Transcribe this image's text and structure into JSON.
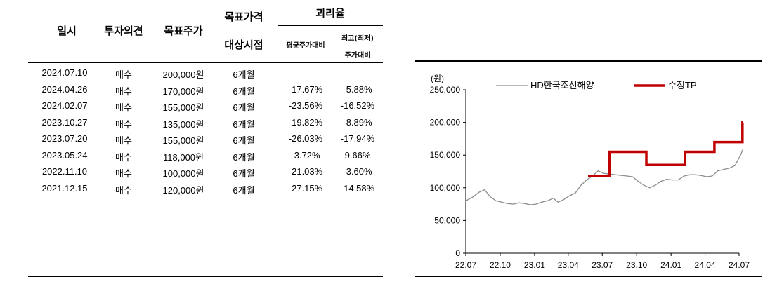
{
  "table": {
    "headers": {
      "date": "일시",
      "opinion": "투자의견",
      "target": "목표주가",
      "target_period_1": "목표가격",
      "target_period_2": "대상시점",
      "disparity": "괴리율",
      "avg": "평균주가대비",
      "maxmin_1": "최고(최저)",
      "maxmin_2": "주가대비"
    },
    "rows": [
      {
        "date": "2024.07.10",
        "opinion": "매수",
        "target": "200,000원",
        "period": "6개월",
        "avg": "",
        "maxmin": ""
      },
      {
        "date": "2024.04.26",
        "opinion": "매수",
        "target": "170,000원",
        "period": "6개월",
        "avg": "-17.67%",
        "maxmin": "-5.88%"
      },
      {
        "date": "2024.02.07",
        "opinion": "매수",
        "target": "155,000원",
        "period": "6개월",
        "avg": "-23.56%",
        "maxmin": "-16.52%"
      },
      {
        "date": "2023.10.27",
        "opinion": "매수",
        "target": "135,000원",
        "period": "6개월",
        "avg": "-19.82%",
        "maxmin": "-8.89%"
      },
      {
        "date": "2023.07.20",
        "opinion": "매수",
        "target": "155,000원",
        "period": "6개월",
        "avg": "-26.03%",
        "maxmin": "-17.94%"
      },
      {
        "date": "2023.05.24",
        "opinion": "매수",
        "target": "118,000원",
        "period": "6개월",
        "avg": "-3.72%",
        "maxmin": "9.66%"
      },
      {
        "date": "2022.11.10",
        "opinion": "매수",
        "target": "100,000원",
        "period": "6개월",
        "avg": "-21.03%",
        "maxmin": "-3.60%"
      },
      {
        "date": "2021.12.15",
        "opinion": "매수",
        "target": "120,000원",
        "period": "6개월",
        "avg": "-27.15%",
        "maxmin": "-14.58%"
      }
    ]
  },
  "chart_data": {
    "type": "line",
    "unit_label": "(원)",
    "x_ticks": [
      "22.07",
      "22.10",
      "23.01",
      "23.04",
      "23.07",
      "23.10",
      "24.01",
      "24.04",
      "24.07"
    ],
    "y_ticks": [
      "0",
      "50,000",
      "100,000",
      "150,000",
      "200,000",
      "250,000"
    ],
    "ylim": [
      0,
      250000
    ],
    "legend_placement": "top",
    "colors": {
      "price": "#8c8c8c",
      "tp": "#c00000"
    },
    "series": [
      {
        "name": "HD한국조선해양",
        "x": [
          "2022-07-01",
          "2022-07-20",
          "2022-08-05",
          "2022-08-20",
          "2022-09-05",
          "2022-09-20",
          "2022-10-05",
          "2022-10-20",
          "2022-11-05",
          "2022-11-20",
          "2022-12-05",
          "2022-12-20",
          "2023-01-05",
          "2023-01-20",
          "2023-02-05",
          "2023-02-20",
          "2023-03-05",
          "2023-03-20",
          "2023-04-05",
          "2023-04-20",
          "2023-05-05",
          "2023-05-20",
          "2023-06-05",
          "2023-06-20",
          "2023-07-05",
          "2023-07-20",
          "2023-08-05",
          "2023-08-20",
          "2023-09-05",
          "2023-09-20",
          "2023-10-05",
          "2023-10-20",
          "2023-11-05",
          "2023-11-20",
          "2023-12-05",
          "2023-12-20",
          "2024-01-05",
          "2024-01-20",
          "2024-02-05",
          "2024-02-20",
          "2024-03-05",
          "2024-03-20",
          "2024-04-05",
          "2024-04-20",
          "2024-05-05",
          "2024-05-20",
          "2024-06-05",
          "2024-06-20",
          "2024-07-05",
          "2024-07-12"
        ],
        "values": [
          80000,
          86000,
          93000,
          97000,
          86000,
          80000,
          78000,
          76000,
          75000,
          77000,
          76000,
          74000,
          75000,
          78000,
          80000,
          84000,
          78000,
          82000,
          88000,
          92000,
          104000,
          112000,
          118000,
          126000,
          122000,
          121000,
          120000,
          119000,
          118000,
          117000,
          110000,
          104000,
          100000,
          104000,
          110000,
          113000,
          112000,
          112000,
          118000,
          120000,
          120000,
          119000,
          117000,
          118000,
          126000,
          128000,
          130000,
          134000,
          150000,
          160000
        ]
      },
      {
        "name": "수정TP",
        "x": [
          "2023-05-24",
          "2023-07-20",
          "2023-10-27",
          "2024-02-07",
          "2024-04-26",
          "2024-07-10",
          "2024-07-12"
        ],
        "values": [
          118000,
          155000,
          135000,
          155000,
          170000,
          200000,
          200000
        ]
      }
    ]
  }
}
